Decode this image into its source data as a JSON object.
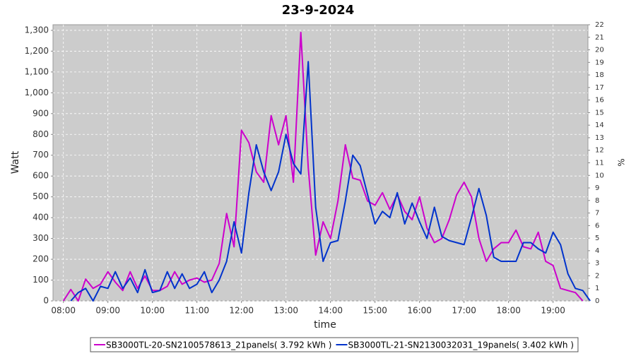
{
  "chart_data": {
    "type": "line",
    "title": "23-9-2024",
    "x_label": "time",
    "y_label": "Watt",
    "y2_label": "%",
    "x": [
      "08:00",
      "08:10",
      "08:20",
      "08:30",
      "08:40",
      "08:50",
      "09:00",
      "09:10",
      "09:20",
      "09:30",
      "09:40",
      "09:50",
      "10:00",
      "10:10",
      "10:20",
      "10:30",
      "10:40",
      "10:50",
      "11:00",
      "11:10",
      "11:20",
      "11:30",
      "11:40",
      "11:50",
      "12:00",
      "12:10",
      "12:20",
      "12:30",
      "12:40",
      "12:50",
      "13:00",
      "13:10",
      "13:20",
      "13:30",
      "13:40",
      "13:50",
      "14:00",
      "14:10",
      "14:20",
      "14:30",
      "14:40",
      "14:50",
      "15:00",
      "15:10",
      "15:20",
      "15:30",
      "15:40",
      "15:50",
      "16:00",
      "16:10",
      "16:20",
      "16:30",
      "16:40",
      "16:50",
      "17:00",
      "17:10",
      "17:20",
      "17:30",
      "17:40",
      "17:50",
      "18:00",
      "18:10",
      "18:20",
      "18:30",
      "18:40",
      "18:50",
      "19:00",
      "19:10",
      "19:20",
      "19:30",
      "19:40",
      "19:50"
    ],
    "xlim": [
      "07:46",
      "19:47"
    ],
    "xticks": [
      "08:00",
      "09:00",
      "10:00",
      "11:00",
      "12:00",
      "13:00",
      "14:00",
      "15:00",
      "16:00",
      "17:00",
      "18:00",
      "19:00"
    ],
    "series": [
      {
        "name": "SB3000TL-20-SN2100578613_21panels( 3.792 kWh )",
        "color": "#cc00cc",
        "values": [
          0,
          55,
          0,
          105,
          60,
          80,
          140,
          90,
          50,
          140,
          60,
          120,
          50,
          50,
          70,
          140,
          80,
          100,
          110,
          90,
          100,
          180,
          420,
          260,
          820,
          760,
          620,
          570,
          890,
          750,
          890,
          570,
          1290,
          640,
          220,
          380,
          300,
          480,
          750,
          590,
          580,
          480,
          460,
          520,
          440,
          510,
          430,
          390,
          500,
          350,
          280,
          300,
          390,
          510,
          570,
          500,
          300,
          190,
          250,
          280,
          280,
          340,
          260,
          250,
          330,
          190,
          170,
          60,
          50,
          40,
          0,
          null
        ]
      },
      {
        "name": "SB3000TL-21-SN2130032031_19panels( 3.402 kWh )",
        "color": "#0033cc",
        "values": [
          null,
          0,
          40,
          60,
          0,
          70,
          60,
          140,
          60,
          110,
          40,
          150,
          40,
          50,
          140,
          60,
          130,
          60,
          80,
          140,
          40,
          100,
          190,
          380,
          230,
          520,
          750,
          620,
          530,
          620,
          800,
          660,
          610,
          1150,
          450,
          190,
          280,
          290,
          480,
          700,
          650,
          510,
          370,
          430,
          400,
          520,
          370,
          470,
          380,
          300,
          450,
          310,
          290,
          280,
          270,
          400,
          540,
          410,
          210,
          190,
          190,
          190,
          280,
          280,
          250,
          230,
          330,
          270,
          130,
          60,
          50,
          0
        ]
      }
    ],
    "ylim": [
      0,
      1327
    ],
    "yticks": [
      0,
      100,
      200,
      300,
      400,
      500,
      600,
      700,
      800,
      900,
      {
        "value": 1000,
        "label": "1,000"
      },
      {
        "value": 1100,
        "label": "1,100"
      },
      {
        "value": 1200,
        "label": "1,200"
      },
      {
        "value": 1300,
        "label": "1,300"
      }
    ],
    "y2lim": [
      0,
      22
    ],
    "y2ticks": [
      0,
      1,
      2,
      3,
      4,
      5,
      6,
      7,
      8,
      9,
      10,
      11,
      12,
      13,
      14,
      15,
      16,
      17,
      18,
      19,
      20,
      21,
      22
    ],
    "grid": true,
    "legend": "bottom"
  }
}
